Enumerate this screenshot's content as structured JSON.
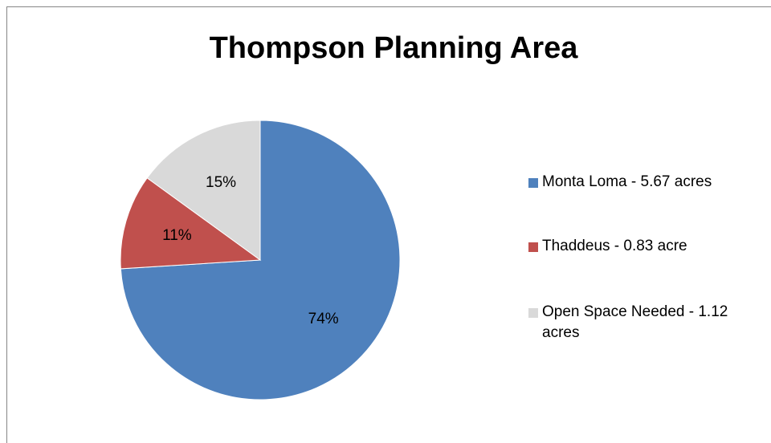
{
  "chart_data": {
    "type": "pie",
    "title": "Thompson Planning Area",
    "categories": [
      "Monta Loma - 5.67 acres",
      "Thaddeus - 0.83 acre",
      "Open Space Needed - 1.12 acres"
    ],
    "values": [
      74,
      11,
      15
    ],
    "value_labels": [
      "74%",
      "11%",
      "15%"
    ],
    "colors": [
      "#4f81bd",
      "#c0504d",
      "#d9d9d9"
    ],
    "legend": "right"
  }
}
